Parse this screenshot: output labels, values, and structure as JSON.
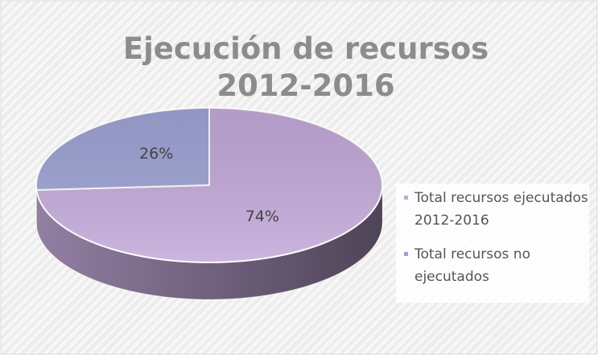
{
  "chart_data": {
    "type": "pie",
    "title": "Ejecución de recursos 2012-2016",
    "categories": [
      "Total recursos ejecutados 2012-2016",
      "Total recursos no ejecutados"
    ],
    "values": [
      74,
      26
    ],
    "value_labels": [
      "74%",
      "26%"
    ],
    "colors": [
      "#c3a9d9",
      "#9ea3d4"
    ],
    "legend": "right"
  }
}
